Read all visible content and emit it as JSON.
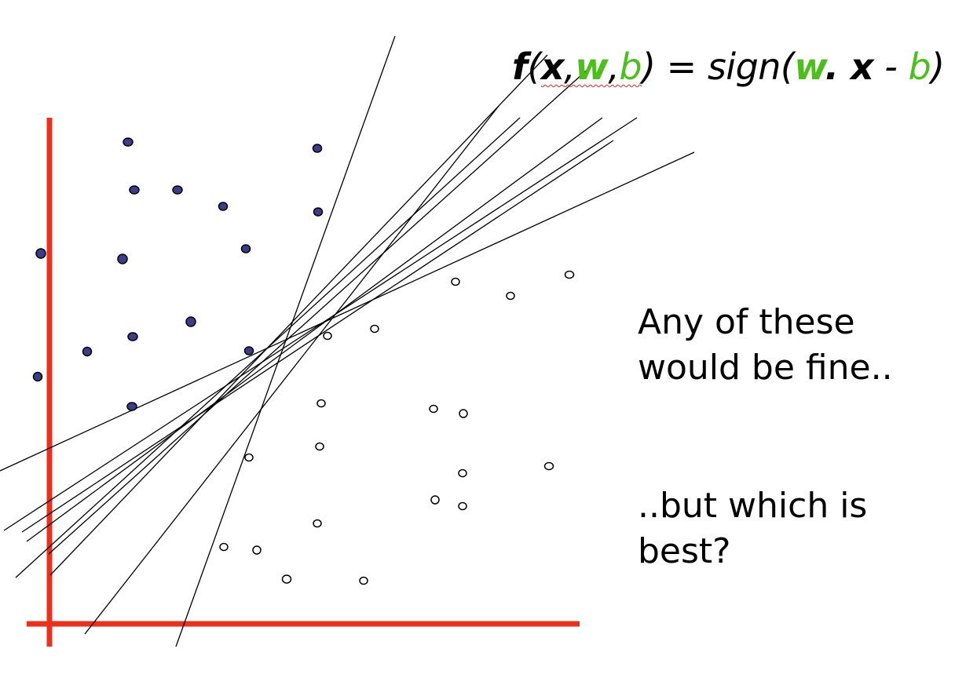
{
  "formula": {
    "f": "f",
    "open": "(",
    "x": "x",
    "comma1": ",",
    "w": "w",
    "comma2": ",",
    "b": "b",
    "close_eq": ") = sign(",
    "w2": "w",
    "dot": ". ",
    "x2": "x",
    "minus": " - ",
    "b2": "b",
    "close": ")"
  },
  "captions": {
    "line1": "Any of these",
    "line2": "would be fine..",
    "line3": "..but which is",
    "line4": "best?"
  },
  "colors": {
    "axis": "#e8321e",
    "positive_fill": "#3b3d8a",
    "negative_fill": "#ffffff",
    "line": "#000000",
    "accent_green": "#4cbf1e"
  }
}
